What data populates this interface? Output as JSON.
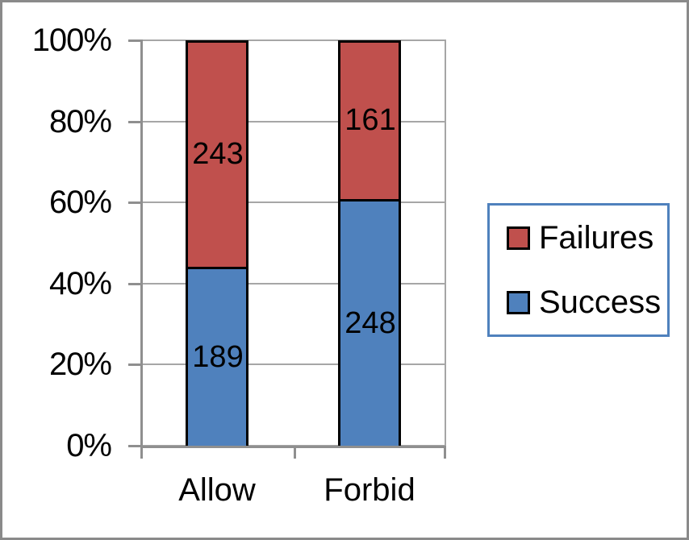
{
  "colors": {
    "frame_border": "#8a8a8a",
    "gridline": "#a6a6a6",
    "axis": "#8f8f8f",
    "bar_outline": "#000000",
    "text": "#000000",
    "legend_border": "#4f81bd",
    "legend_background": "#ffffff"
  },
  "chart_data": {
    "type": "bar",
    "subtype": "100-percent-stacked-column",
    "title": "",
    "xlabel": "",
    "ylabel": "",
    "categories": [
      "Allow",
      "Forbid"
    ],
    "series": [
      {
        "name": "Success",
        "color": "#4f81bd",
        "values": [
          189,
          248
        ]
      },
      {
        "name": "Failures",
        "color": "#c0504d",
        "values": [
          243,
          161
        ]
      }
    ],
    "data_labels": {
      "Allow": {
        "Success": "189",
        "Failures": "243"
      },
      "Forbid": {
        "Success": "248",
        "Failures": "161"
      }
    },
    "y_axis": {
      "min": 0,
      "max": 100,
      "step": 20,
      "ticks": [
        {
          "label": "0%",
          "value": 0
        },
        {
          "label": "20%",
          "value": 20
        },
        {
          "label": "40%",
          "value": 40
        },
        {
          "label": "60%",
          "value": 60
        },
        {
          "label": "80%",
          "value": 80
        },
        {
          "label": "100%",
          "value": 100
        }
      ]
    },
    "grid": true,
    "legend": {
      "position": "right",
      "order": [
        "Failures",
        "Success"
      ]
    }
  }
}
